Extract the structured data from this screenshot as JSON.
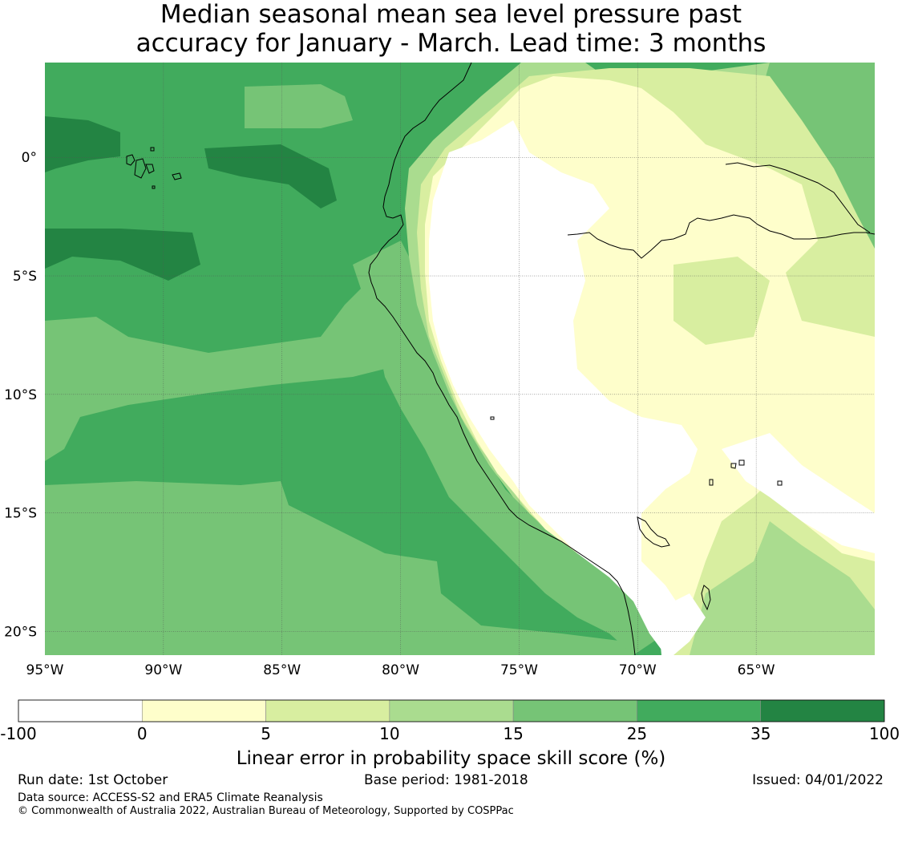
{
  "title": {
    "line1": "Median seasonal mean sea level pressure past",
    "line2": "accuracy for January - March. Lead time: 3 months"
  },
  "map": {
    "lon_range": [
      -95,
      -60
    ],
    "lat_range": [
      -21,
      4
    ],
    "lon_ticks": [
      {
        "value": -95,
        "label": "95°W"
      },
      {
        "value": -90,
        "label": "90°W"
      },
      {
        "value": -85,
        "label": "85°W"
      },
      {
        "value": -80,
        "label": "80°W"
      },
      {
        "value": -75,
        "label": "75°W"
      },
      {
        "value": -70,
        "label": "70°W"
      },
      {
        "value": -65,
        "label": "65°W"
      }
    ],
    "lat_ticks": [
      {
        "value": 0,
        "label": "0°"
      },
      {
        "value": -5,
        "label": "5°S"
      },
      {
        "value": -10,
        "label": "10°S"
      },
      {
        "value": -15,
        "label": "15°S"
      },
      {
        "value": -20,
        "label": "20°S"
      }
    ],
    "grid": true
  },
  "colorbar": {
    "boundaries": [
      {
        "value": -100,
        "label": "-100"
      },
      {
        "value": 0,
        "label": "0"
      },
      {
        "value": 5,
        "label": "5"
      },
      {
        "value": 10,
        "label": "10"
      },
      {
        "value": 15,
        "label": "15"
      },
      {
        "value": 25,
        "label": "25"
      },
      {
        "value": 35,
        "label": "35"
      },
      {
        "value": 100,
        "label": "100"
      }
    ],
    "colors": [
      "#ffffff",
      "#fefecb",
      "#d8eea0",
      "#aadc8f",
      "#76c476",
      "#41ab5d",
      "#238443"
    ],
    "label": "Linear error in probability space skill score (%)"
  },
  "footer": {
    "run_date": "Run date: 1st October",
    "base_period": "Base period: 1981-2018",
    "issued": "Issued: 04/01/2022",
    "data_source": "Data source: ACCESS-S2 and ERA5 Climate Reanalysis",
    "copyright": "© Commonwealth of Australia 2022, Australian Bureau of Meteorology, Supported by COSPPac"
  }
}
